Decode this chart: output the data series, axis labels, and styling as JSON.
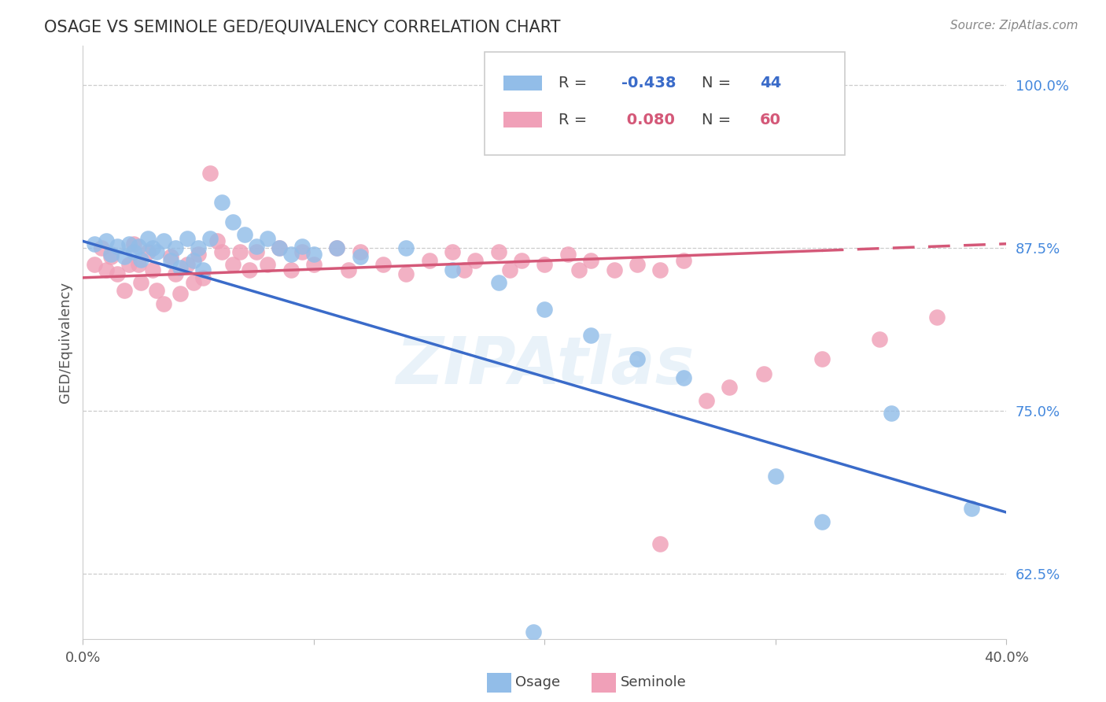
{
  "title": "OSAGE VS SEMINOLE GED/EQUIVALENCY CORRELATION CHART",
  "source": "Source: ZipAtlas.com",
  "ylabel": "GED/Equivalency",
  "xmin": 0.0,
  "xmax": 0.4,
  "ymin": 0.575,
  "ymax": 1.03,
  "yticks": [
    0.625,
    0.75,
    0.875,
    1.0
  ],
  "ytick_labels": [
    "62.5%",
    "75.0%",
    "87.5%",
    "100.0%"
  ],
  "osage_color": "#92bde8",
  "seminole_color": "#f0a0b8",
  "osage_line_color": "#3a6bc9",
  "seminole_line_color": "#d45878",
  "R_osage": -0.438,
  "N_osage": 44,
  "R_seminole": 0.08,
  "N_seminole": 60,
  "background_color": "#ffffff",
  "osage_x": [
    0.005,
    0.01,
    0.012,
    0.015,
    0.018,
    0.02,
    0.022,
    0.024,
    0.025,
    0.028,
    0.03,
    0.032,
    0.035,
    0.038,
    0.04,
    0.042,
    0.045,
    0.048,
    0.05,
    0.052,
    0.055,
    0.06,
    0.065,
    0.07,
    0.075,
    0.08,
    0.085,
    0.09,
    0.095,
    0.1,
    0.11,
    0.12,
    0.14,
    0.16,
    0.18,
    0.2,
    0.22,
    0.24,
    0.26,
    0.3,
    0.32,
    0.35,
    0.385,
    0.195
  ],
  "osage_y": [
    0.878,
    0.88,
    0.87,
    0.876,
    0.868,
    0.878,
    0.872,
    0.876,
    0.866,
    0.882,
    0.875,
    0.872,
    0.88,
    0.865,
    0.875,
    0.86,
    0.882,
    0.865,
    0.875,
    0.858,
    0.882,
    0.91,
    0.895,
    0.885,
    0.876,
    0.882,
    0.875,
    0.87,
    0.876,
    0.87,
    0.875,
    0.868,
    0.875,
    0.858,
    0.848,
    0.828,
    0.808,
    0.79,
    0.775,
    0.7,
    0.665,
    0.748,
    0.675,
    0.58
  ],
  "seminole_x": [
    0.005,
    0.008,
    0.01,
    0.012,
    0.015,
    0.018,
    0.02,
    0.022,
    0.024,
    0.025,
    0.028,
    0.03,
    0.032,
    0.035,
    0.038,
    0.04,
    0.042,
    0.045,
    0.048,
    0.05,
    0.052,
    0.055,
    0.058,
    0.06,
    0.065,
    0.068,
    0.072,
    0.075,
    0.08,
    0.085,
    0.09,
    0.095,
    0.1,
    0.11,
    0.115,
    0.12,
    0.13,
    0.14,
    0.15,
    0.16,
    0.165,
    0.17,
    0.18,
    0.185,
    0.19,
    0.2,
    0.21,
    0.215,
    0.22,
    0.23,
    0.24,
    0.25,
    0.26,
    0.27,
    0.28,
    0.295,
    0.32,
    0.345,
    0.37,
    0.25
  ],
  "seminole_y": [
    0.862,
    0.875,
    0.858,
    0.868,
    0.855,
    0.842,
    0.862,
    0.878,
    0.862,
    0.848,
    0.872,
    0.858,
    0.842,
    0.832,
    0.868,
    0.855,
    0.84,
    0.862,
    0.848,
    0.87,
    0.852,
    0.932,
    0.88,
    0.872,
    0.862,
    0.872,
    0.858,
    0.872,
    0.862,
    0.875,
    0.858,
    0.872,
    0.862,
    0.875,
    0.858,
    0.872,
    0.862,
    0.855,
    0.865,
    0.872,
    0.858,
    0.865,
    0.872,
    0.858,
    0.865,
    0.862,
    0.87,
    0.858,
    0.865,
    0.858,
    0.862,
    0.858,
    0.865,
    0.758,
    0.768,
    0.778,
    0.79,
    0.805,
    0.822,
    0.648
  ],
  "seminole_line_start_x": 0.0,
  "seminole_line_break_x": 0.32,
  "seminole_line_end_x": 0.4,
  "osage_line_y0": 0.88,
  "osage_line_y1": 0.672,
  "seminole_line_y0": 0.852,
  "seminole_line_y1": 0.878
}
